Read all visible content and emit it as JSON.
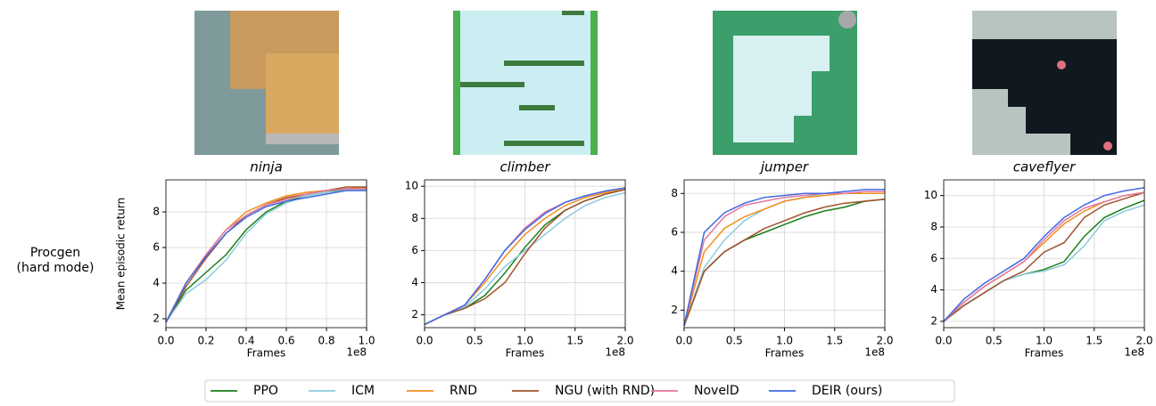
{
  "row_label": [
    "Procgen",
    "(hard mode)"
  ],
  "chart_data": [
    {
      "type": "line",
      "title": "ninja",
      "ylabel": "Mean episodic return",
      "xlabel": "Frames",
      "x_offset_label": "1e8",
      "grid": true,
      "x": [
        0,
        0.1,
        0.2,
        0.3,
        0.4,
        0.5,
        0.6,
        0.7,
        0.8,
        0.9,
        1.0
      ],
      "xlim": [
        0,
        1.0
      ],
      "xticks": [
        {
          "value": 0,
          "label": "0.0"
        },
        0.2,
        0.4,
        0.6,
        0.8,
        {
          "value": 1,
          "label": "1.0"
        }
      ],
      "ylim": [
        1.5,
        9.8
      ],
      "yticks": [
        2,
        4,
        6,
        8
      ],
      "series": [
        {
          "name": "PPO",
          "color": "#1a7f1a",
          "values": [
            1.8,
            3.6,
            4.6,
            5.6,
            7.0,
            8.0,
            8.6,
            8.9,
            9.1,
            9.3,
            9.3
          ]
        },
        {
          "name": "ICM",
          "color": "#8ccbe0",
          "values": [
            1.8,
            3.4,
            4.2,
            5.3,
            6.8,
            7.9,
            8.5,
            8.9,
            9.1,
            9.2,
            9.2
          ]
        },
        {
          "name": "RND",
          "color": "#f28e1c",
          "values": [
            1.8,
            4.0,
            5.6,
            7.0,
            8.0,
            8.5,
            8.9,
            9.1,
            9.2,
            9.3,
            9.4
          ]
        },
        {
          "name": "NGU (with RND)",
          "color": "#a0522d",
          "values": [
            1.8,
            3.8,
            5.4,
            6.8,
            7.8,
            8.4,
            8.8,
            9.0,
            9.2,
            9.4,
            9.4
          ]
        },
        {
          "name": "NovelD",
          "color": "#e377a0",
          "values": [
            1.8,
            4.0,
            5.6,
            7.0,
            7.8,
            8.4,
            8.7,
            9.0,
            9.2,
            9.3,
            9.3
          ]
        },
        {
          "name": "DEIR (ours)",
          "color": "#4169e1",
          "values": [
            1.8,
            4.0,
            5.5,
            6.8,
            7.7,
            8.3,
            8.6,
            8.8,
            9.0,
            9.2,
            9.2
          ]
        }
      ]
    },
    {
      "type": "line",
      "title": "climber",
      "xlabel": "Frames",
      "x_offset_label": "1e8",
      "grid": true,
      "x": [
        0,
        0.2,
        0.4,
        0.6,
        0.8,
        1.0,
        1.2,
        1.4,
        1.6,
        1.8,
        2.0
      ],
      "xlim": [
        0,
        2.0
      ],
      "xticks": [
        {
          "value": 0,
          "label": "0.0"
        },
        0.5,
        {
          "value": 1,
          "label": "1.0"
        },
        1.5,
        {
          "value": 2,
          "label": "2.0"
        }
      ],
      "ylim": [
        1.2,
        10.4
      ],
      "yticks": [
        2,
        4,
        6,
        8,
        10
      ],
      "series": [
        {
          "name": "PPO",
          "color": "#1a7f1a",
          "values": [
            1.4,
            2.0,
            2.4,
            3.2,
            4.6,
            6.2,
            7.6,
            8.5,
            9.1,
            9.5,
            9.8
          ]
        },
        {
          "name": "ICM",
          "color": "#8ccbe0",
          "values": [
            1.4,
            2.0,
            2.5,
            3.6,
            5.0,
            6.0,
            7.0,
            8.0,
            8.8,
            9.3,
            9.6
          ]
        },
        {
          "name": "RND",
          "color": "#f28e1c",
          "values": [
            1.4,
            2.0,
            2.6,
            4.0,
            5.6,
            7.0,
            8.0,
            8.8,
            9.3,
            9.6,
            9.8
          ]
        },
        {
          "name": "NGU (with RND)",
          "color": "#a0522d",
          "values": [
            1.4,
            2.0,
            2.4,
            3.0,
            4.0,
            5.8,
            7.4,
            8.5,
            9.1,
            9.5,
            9.8
          ]
        },
        {
          "name": "NovelD",
          "color": "#e377a0",
          "values": [
            1.4,
            2.0,
            2.6,
            4.2,
            6.0,
            7.4,
            8.4,
            9.0,
            9.4,
            9.7,
            9.9
          ]
        },
        {
          "name": "DEIR (ours)",
          "color": "#4169e1",
          "values": [
            1.4,
            2.0,
            2.6,
            4.2,
            6.0,
            7.3,
            8.3,
            9.0,
            9.4,
            9.7,
            9.9
          ]
        }
      ]
    },
    {
      "type": "line",
      "title": "jumper",
      "xlabel": "Frames",
      "x_offset_label": "1e8",
      "grid": true,
      "x": [
        0,
        0.2,
        0.4,
        0.6,
        0.8,
        1.0,
        1.2,
        1.4,
        1.6,
        1.8,
        2.0
      ],
      "xlim": [
        0,
        2.0
      ],
      "xticks": [
        {
          "value": 0,
          "label": "0.0"
        },
        0.5,
        {
          "value": 1,
          "label": "1.0"
        },
        1.5,
        {
          "value": 2,
          "label": "2.0"
        }
      ],
      "ylim": [
        1.1,
        8.7
      ],
      "yticks": [
        2,
        4,
        6,
        8
      ],
      "series": [
        {
          "name": "PPO",
          "color": "#1a7f1a",
          "values": [
            1.2,
            4.0,
            5.0,
            5.6,
            6.0,
            6.4,
            6.8,
            7.1,
            7.3,
            7.6,
            7.7
          ]
        },
        {
          "name": "ICM",
          "color": "#8ccbe0",
          "values": [
            1.2,
            4.2,
            5.6,
            6.6,
            7.2,
            7.6,
            7.8,
            8.0,
            8.0,
            8.0,
            8.0
          ]
        },
        {
          "name": "RND",
          "color": "#f28e1c",
          "values": [
            1.2,
            5.0,
            6.2,
            6.8,
            7.2,
            7.6,
            7.8,
            7.9,
            8.0,
            8.0,
            8.0
          ]
        },
        {
          "name": "NGU (with RND)",
          "color": "#a0522d",
          "values": [
            1.2,
            4.0,
            5.0,
            5.6,
            6.2,
            6.6,
            7.0,
            7.3,
            7.5,
            7.6,
            7.7
          ]
        },
        {
          "name": "NovelD",
          "color": "#e377a0",
          "values": [
            1.2,
            5.6,
            6.8,
            7.4,
            7.6,
            7.8,
            7.9,
            8.0,
            8.0,
            8.1,
            8.1
          ]
        },
        {
          "name": "DEIR (ours)",
          "color": "#4169e1",
          "values": [
            1.2,
            6.0,
            7.0,
            7.5,
            7.8,
            7.9,
            8.0,
            8.0,
            8.1,
            8.2,
            8.2
          ]
        }
      ]
    },
    {
      "type": "line",
      "title": "caveflyer",
      "xlabel": "Frames",
      "x_offset_label": "1e8",
      "grid": true,
      "x": [
        0,
        0.2,
        0.4,
        0.6,
        0.8,
        1.0,
        1.2,
        1.4,
        1.6,
        1.8,
        2.0
      ],
      "xlim": [
        0,
        2.0
      ],
      "xticks": [
        {
          "value": 0,
          "label": "0.0"
        },
        0.5,
        {
          "value": 1,
          "label": "1.0"
        },
        1.5,
        {
          "value": 2,
          "label": "2.0"
        }
      ],
      "ylim": [
        1.6,
        11.0
      ],
      "yticks": [
        2,
        4,
        6,
        8,
        10
      ],
      "series": [
        {
          "name": "PPO",
          "color": "#1a7f1a",
          "values": [
            2.0,
            3.0,
            3.8,
            4.6,
            5.0,
            5.3,
            5.8,
            7.4,
            8.6,
            9.2,
            9.7
          ]
        },
        {
          "name": "ICM",
          "color": "#8ccbe0",
          "values": [
            2.0,
            3.0,
            3.8,
            4.6,
            5.0,
            5.2,
            5.6,
            6.8,
            8.4,
            9.0,
            9.4
          ]
        },
        {
          "name": "RND",
          "color": "#f28e1c",
          "values": [
            2.0,
            3.2,
            4.2,
            5.0,
            5.8,
            7.0,
            8.2,
            9.0,
            9.6,
            10.0,
            10.2
          ]
        },
        {
          "name": "NGU (with RND)",
          "color": "#a0522d",
          "values": [
            2.0,
            3.0,
            3.8,
            4.6,
            5.2,
            6.4,
            7.0,
            8.6,
            9.4,
            9.8,
            10.2
          ]
        },
        {
          "name": "NovelD",
          "color": "#e377a0",
          "values": [
            2.0,
            3.2,
            4.2,
            5.0,
            5.8,
            7.2,
            8.4,
            9.2,
            9.6,
            10.0,
            10.2
          ]
        },
        {
          "name": "DEIR (ours)",
          "color": "#4169e1",
          "values": [
            2.0,
            3.4,
            4.4,
            5.2,
            6.0,
            7.4,
            8.6,
            9.4,
            10.0,
            10.3,
            10.5
          ]
        }
      ]
    }
  ]
}
